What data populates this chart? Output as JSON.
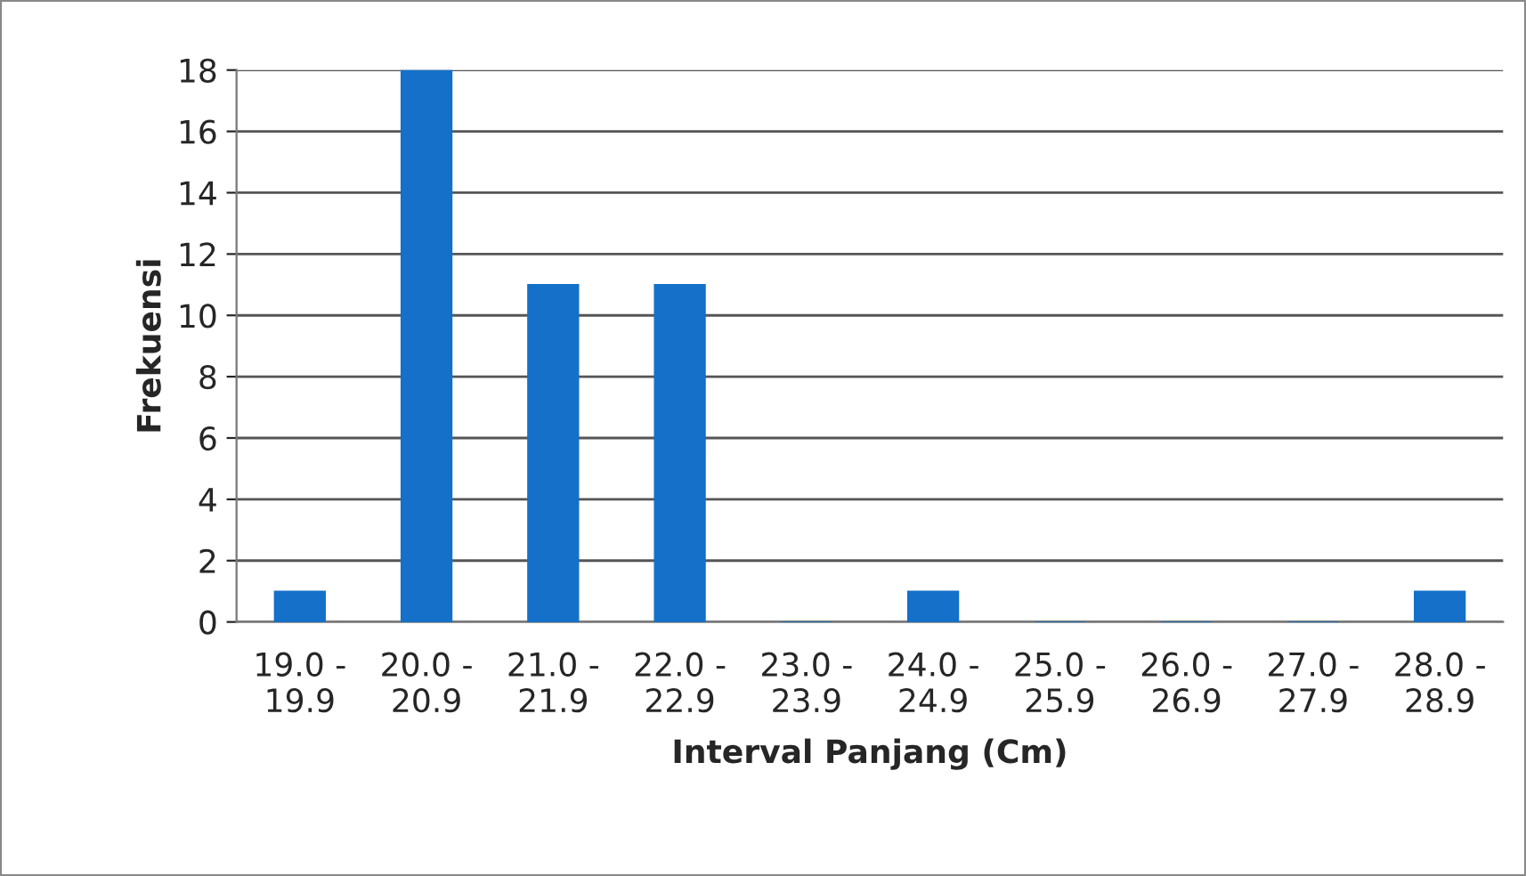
{
  "chart_data": {
    "type": "bar",
    "xlabel": "Interval Panjang (Cm)",
    "ylabel": "Frekuensi",
    "categories": [
      "19.0 - 19.9",
      "20.0 - 20.9",
      "21.0 - 21.9",
      "22.0 - 22.9",
      "23.0 - 23.9",
      "24.0 - 24.9",
      "25.0 - 25.9",
      "26.0 - 26.9",
      "27.0 - 27.9",
      "28.0 - 28.9"
    ],
    "values": [
      1,
      18,
      11,
      11,
      0,
      1,
      0,
      0,
      0,
      1
    ],
    "color": "#1470c8",
    "ylim": [
      0,
      18
    ],
    "yticks": [
      0,
      2,
      4,
      6,
      8,
      10,
      12,
      14,
      16,
      18
    ],
    "grid": "y",
    "legend": false
  }
}
